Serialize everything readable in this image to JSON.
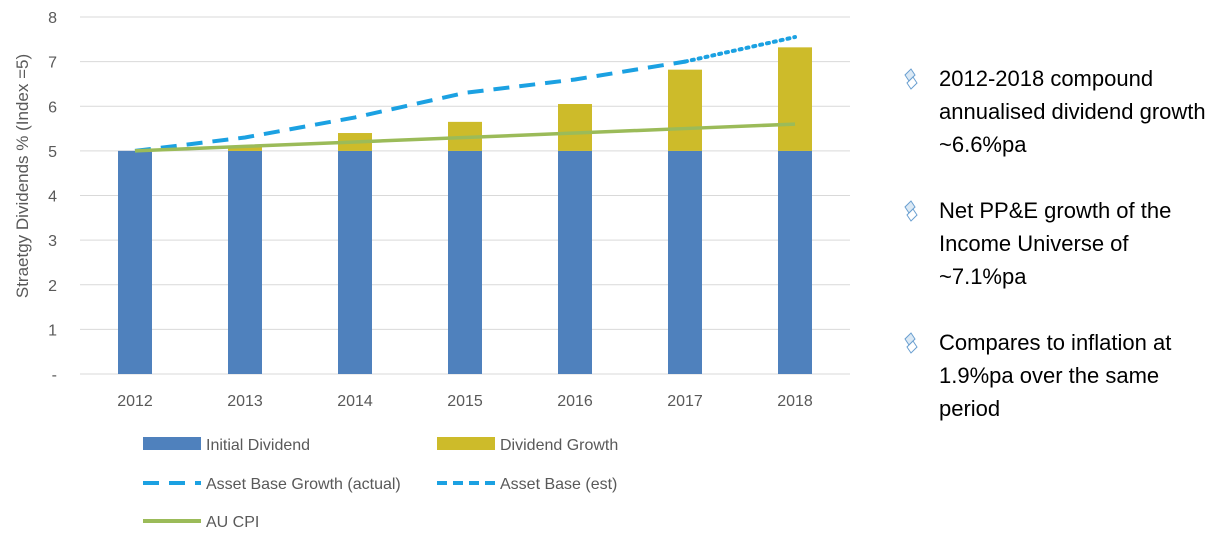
{
  "chart_data": {
    "type": "bar",
    "stacked": true,
    "categories": [
      "2012",
      "2013",
      "2014",
      "2015",
      "2016",
      "2017",
      "2018"
    ],
    "ylabel": "Straetgy Dividends % (Index =5)",
    "ylim": [
      0,
      8
    ],
    "yticks": [
      "-",
      "1",
      "2",
      "3",
      "4",
      "5",
      "6",
      "7",
      "8"
    ],
    "grid": true,
    "legend_position": "bottom",
    "series": [
      {
        "name": "Initial Dividend",
        "kind": "bar",
        "color": "#4f81bd",
        "values": [
          5,
          5,
          5,
          5,
          5,
          5,
          5
        ]
      },
      {
        "name": "Dividend Growth",
        "kind": "bar",
        "color": "#cdbb2a",
        "values": [
          0,
          0.1,
          0.4,
          0.65,
          1.05,
          1.82,
          2.32
        ]
      },
      {
        "name": "Asset Base Growth (actual)",
        "kind": "line",
        "style": "dashed",
        "color": "#1ba1e2",
        "values": [
          5.0,
          5.3,
          5.75,
          6.3,
          6.6,
          7.0,
          null
        ]
      },
      {
        "name": "Asset Base (est)",
        "kind": "line",
        "style": "dotted",
        "color": "#1ba1e2",
        "values": [
          null,
          null,
          null,
          null,
          null,
          7.0,
          7.55
        ]
      },
      {
        "name": "AU CPI",
        "kind": "line",
        "style": "solid",
        "color": "#9bbb59",
        "values": [
          5.0,
          5.1,
          5.2,
          5.3,
          5.4,
          5.5,
          5.6
        ]
      }
    ]
  },
  "legend": {
    "items": [
      {
        "label": "Initial Dividend",
        "symbol": "bar",
        "color": "#4f81bd"
      },
      {
        "label": "Dividend Growth",
        "symbol": "bar",
        "color": "#cdbb2a"
      },
      {
        "label": "Asset Base Growth (actual)",
        "symbol": "dashed",
        "color": "#1ba1e2"
      },
      {
        "label": "Asset Base (est)",
        "symbol": "dashed-short",
        "color": "#1ba1e2"
      },
      {
        "label": "AU CPI",
        "symbol": "line",
        "color": "#9bbb59"
      }
    ]
  },
  "bullets": {
    "icon": "diamond-bullet-icon",
    "items": [
      {
        "text": "2012-2018 compound annualised dividend growth ~6.6%pa"
      },
      {
        "text": "Net PP&E growth of the Income Universe of ~7.1%pa"
      },
      {
        "text": "Compares to inflation at 1.9%pa over the same period"
      }
    ]
  }
}
